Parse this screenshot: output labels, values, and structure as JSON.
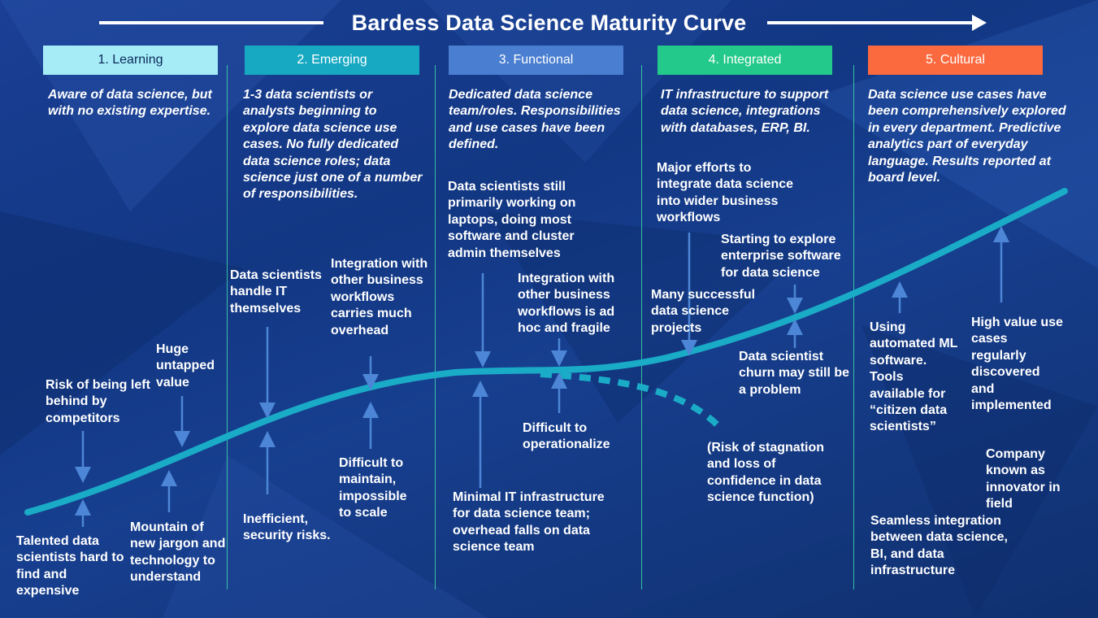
{
  "title": "Bardess Data Science Maturity Curve",
  "colors": {
    "stage1": "#a6ecf7",
    "stage2": "#17a9c2",
    "stage3": "#4a7ed0",
    "stage4": "#23c98a",
    "stage5": "#fb6a3f",
    "curve": "#1aabc7",
    "arrow": "#4d86d6"
  },
  "stages": [
    {
      "label": "1. Learning"
    },
    {
      "label": "2. Emerging"
    },
    {
      "label": "3. Functional"
    },
    {
      "label": "4. Integrated"
    },
    {
      "label": "5. Cultural"
    }
  ],
  "descriptions": {
    "learning": "Aware of data science, but with no existing expertise.",
    "emerging": "1-3 data scientists or analysts beginning to explore data science use cases. No fully dedicated data science roles; data science just one of a number of responsibilities.",
    "functional": "Dedicated data science team/roles. Responsibilities and use cases have been defined.",
    "integrated": "IT infrastructure to support data science, integrations with databases, ERP, BI.",
    "cultural": "Data science use cases have been comprehensively explored in every department. Predictive analytics part of everyday language. Results reported at board level."
  },
  "notes": {
    "risk_behind": "Risk of being left behind by competitors",
    "huge_value": "Huge untapped value",
    "talented": "Talented data scientists hard to find and expensive",
    "mountain": "Mountain of new jargon and technology to understand",
    "handle_it": "Data scientists handle IT themselves",
    "integration_overhead": "Integration with other business workflows carries much overhead",
    "inefficient": "Inefficient, security risks.",
    "difficult_maintain": "Difficult to maintain, impossible to scale",
    "laptops": "Data scientists still primarily working on laptops, doing most software and cluster admin themselves",
    "integration_adhoc": "Integration with other business workflows is ad hoc and fragile",
    "operationalize": "Difficult to operationalize",
    "minimal_it": "Minimal IT infrastructure for data science team; overhead falls on data science team",
    "major_efforts": "Major efforts to integrate data science into wider business workflows",
    "exploring_enterprise": "Starting to explore enterprise software for data science",
    "many_successful": "Many successful data science projects",
    "churn": "Data scientist churn may still be a problem",
    "stagnation": "(Risk of stagnation and loss of confidence in data science function)",
    "automated_ml": "Using automated ML software. Tools available for “citizen data scientists”",
    "high_value": "High value use cases regularly discovered and implemented",
    "innovator": "Company known as innovator in field",
    "seamless": "Seamless integration between data science, BI, and data infrastructure"
  }
}
